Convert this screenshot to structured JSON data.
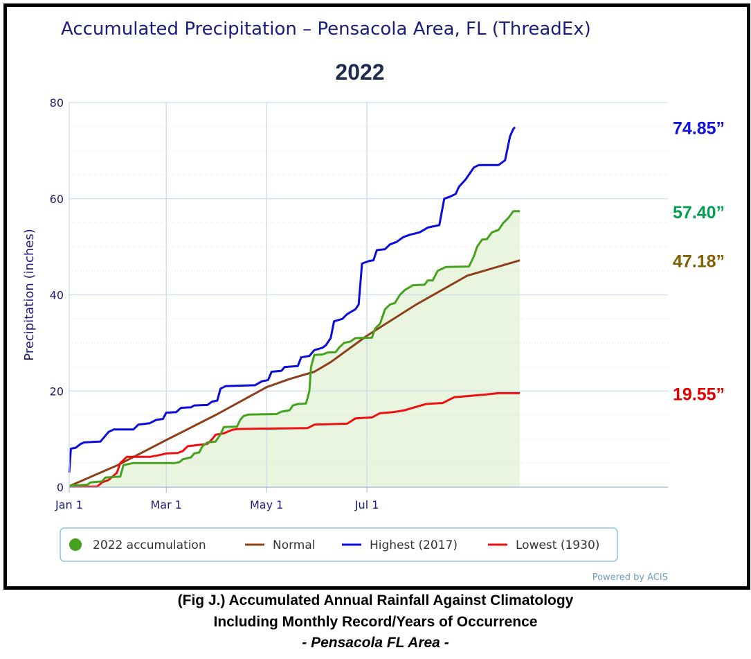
{
  "chart_data": {
    "type": "line",
    "title": "Accumulated Precipitation – Pensacola Area, FL (ThreadEx)",
    "subtitle": "2022",
    "ylabel": "Precipitation (inches)",
    "xlabel": "",
    "ylim": [
      0,
      80
    ],
    "yticks": [
      "0",
      "20",
      "40",
      "60",
      "80"
    ],
    "xlim": [
      1,
      365
    ],
    "xticks": [
      {
        "label": "Jan 1",
        "day": 1
      },
      {
        "label": "Mar 1",
        "day": 60
      },
      {
        "label": "May 1",
        "day": 121
      },
      {
        "label": "Jul 1",
        "day": 182
      }
    ],
    "grid": true,
    "legend_position": "bottom",
    "credit": "Powered by ACIS",
    "series": [
      {
        "name": "2022 accumulation",
        "color": "#46a11f",
        "style": "area",
        "end_label": "57.40”",
        "end_label_color": "#00a050",
        "points": [
          [
            1,
            0.3
          ],
          [
            12,
            0.5
          ],
          [
            14,
            1.0
          ],
          [
            21,
            1.2
          ],
          [
            23,
            2.0
          ],
          [
            32,
            2.2
          ],
          [
            34,
            4.6
          ],
          [
            40,
            5.0
          ],
          [
            45,
            5.0
          ],
          [
            65,
            5.0
          ],
          [
            68,
            5.2
          ],
          [
            70,
            5.8
          ],
          [
            75,
            6.2
          ],
          [
            77,
            7.0
          ],
          [
            80,
            7.2
          ],
          [
            82,
            8.5
          ],
          [
            85,
            9.3
          ],
          [
            90,
            9.5
          ],
          [
            93,
            11.0
          ],
          [
            95,
            12.5
          ],
          [
            103,
            12.6
          ],
          [
            105,
            14.0
          ],
          [
            107,
            14.8
          ],
          [
            110,
            15.1
          ],
          [
            127,
            15.2
          ],
          [
            130,
            15.7
          ],
          [
            135,
            16.0
          ],
          [
            137,
            17.0
          ],
          [
            140,
            17.3
          ],
          [
            145,
            17.4
          ],
          [
            147,
            20.0
          ],
          [
            148,
            25.0
          ],
          [
            150,
            27.5
          ],
          [
            155,
            27.6
          ],
          [
            158,
            28.0
          ],
          [
            163,
            28.1
          ],
          [
            165,
            29.0
          ],
          [
            168,
            30.0
          ],
          [
            172,
            30.3
          ],
          [
            175,
            31.0
          ],
          [
            185,
            31.1
          ],
          [
            187,
            33.0
          ],
          [
            190,
            34.0
          ],
          [
            193,
            37.0
          ],
          [
            196,
            38.0
          ],
          [
            199,
            38.3
          ],
          [
            202,
            40.0
          ],
          [
            205,
            41.0
          ],
          [
            210,
            42.0
          ],
          [
            217,
            42.1
          ],
          [
            219,
            43.0
          ],
          [
            222,
            43.0
          ],
          [
            225,
            45.0
          ],
          [
            230,
            45.8
          ],
          [
            244,
            45.9
          ],
          [
            247,
            48.0
          ],
          [
            249,
            50.0
          ],
          [
            252,
            51.5
          ],
          [
            255,
            51.6
          ],
          [
            258,
            53.0
          ],
          [
            262,
            53.5
          ],
          [
            265,
            55.0
          ],
          [
            268,
            56.0
          ],
          [
            271,
            57.4
          ],
          [
            275,
            57.4
          ]
        ]
      },
      {
        "name": "Normal",
        "color": "#8b3f1a",
        "style": "line",
        "end_label": "47.18”",
        "end_label_color": "#806000",
        "points": [
          [
            1,
            0.2
          ],
          [
            30,
            4.5
          ],
          [
            60,
            9.8
          ],
          [
            90,
            15.0
          ],
          [
            121,
            20.8
          ],
          [
            135,
            22.5
          ],
          [
            150,
            24.0
          ],
          [
            160,
            26.0
          ],
          [
            182,
            31.5
          ],
          [
            212,
            38.0
          ],
          [
            243,
            44.0
          ],
          [
            275,
            47.18
          ]
        ]
      },
      {
        "name": "Highest (2017)",
        "color": "#0a0adc",
        "style": "line",
        "end_label": "74.85”",
        "end_label_color": "#1010e0",
        "points": [
          [
            1,
            3.0
          ],
          [
            2,
            8.0
          ],
          [
            5,
            8.2
          ],
          [
            8,
            9.0
          ],
          [
            10,
            9.3
          ],
          [
            20,
            9.5
          ],
          [
            25,
            11.5
          ],
          [
            28,
            12.0
          ],
          [
            40,
            12.0
          ],
          [
            43,
            13.0
          ],
          [
            50,
            13.3
          ],
          [
            54,
            14.0
          ],
          [
            58,
            14.2
          ],
          [
            60,
            15.5
          ],
          [
            66,
            15.6
          ],
          [
            69,
            16.5
          ],
          [
            75,
            16.6
          ],
          [
            77,
            17.0
          ],
          [
            85,
            17.1
          ],
          [
            88,
            17.8
          ],
          [
            91,
            18.0
          ],
          [
            93,
            20.5
          ],
          [
            96,
            21.0
          ],
          [
            114,
            21.2
          ],
          [
            118,
            22.0
          ],
          [
            122,
            22.3
          ],
          [
            124,
            24.0
          ],
          [
            130,
            24.2
          ],
          [
            132,
            25.0
          ],
          [
            140,
            25.2
          ],
          [
            142,
            27.0
          ],
          [
            147,
            27.3
          ],
          [
            150,
            28.5
          ],
          [
            155,
            29.0
          ],
          [
            157,
            29.5
          ],
          [
            160,
            31.0
          ],
          [
            162,
            34.5
          ],
          [
            167,
            35.0
          ],
          [
            170,
            36.0
          ],
          [
            175,
            37.0
          ],
          [
            177,
            38.0
          ],
          [
            179,
            46.5
          ],
          [
            183,
            47.0
          ],
          [
            186,
            47.2
          ],
          [
            188,
            49.3
          ],
          [
            193,
            49.5
          ],
          [
            196,
            50.5
          ],
          [
            200,
            51.0
          ],
          [
            204,
            52.0
          ],
          [
            208,
            52.5
          ],
          [
            214,
            53.0
          ],
          [
            219,
            54.0
          ],
          [
            226,
            54.5
          ],
          [
            229,
            60.0
          ],
          [
            233,
            60.5
          ],
          [
            236,
            61.0
          ],
          [
            238,
            62.5
          ],
          [
            242,
            64.0
          ],
          [
            247,
            66.5
          ],
          [
            250,
            67.0
          ],
          [
            262,
            67.0
          ],
          [
            266,
            68.0
          ],
          [
            269,
            73.0
          ],
          [
            271,
            74.5
          ],
          [
            272,
            74.85
          ]
        ]
      },
      {
        "name": "Lowest (1930)",
        "color": "#ee1010",
        "style": "line",
        "end_label": "19.55”",
        "end_label_color": "#e00000",
        "points": [
          [
            1,
            0.1
          ],
          [
            18,
            0.1
          ],
          [
            21,
            1.0
          ],
          [
            25,
            1.5
          ],
          [
            30,
            3.0
          ],
          [
            32,
            5.0
          ],
          [
            36,
            6.3
          ],
          [
            50,
            6.3
          ],
          [
            55,
            6.6
          ],
          [
            60,
            7.0
          ],
          [
            67,
            7.1
          ],
          [
            70,
            7.5
          ],
          [
            73,
            8.5
          ],
          [
            80,
            8.8
          ],
          [
            85,
            9.0
          ],
          [
            88,
            10.0
          ],
          [
            90,
            10.9
          ],
          [
            95,
            11.2
          ],
          [
            100,
            11.9
          ],
          [
            103,
            12.1
          ],
          [
            146,
            12.3
          ],
          [
            150,
            13.0
          ],
          [
            170,
            13.2
          ],
          [
            175,
            14.3
          ],
          [
            185,
            14.5
          ],
          [
            190,
            15.4
          ],
          [
            198,
            15.6
          ],
          [
            205,
            16.0
          ],
          [
            212,
            16.7
          ],
          [
            218,
            17.3
          ],
          [
            228,
            17.5
          ],
          [
            235,
            18.7
          ],
          [
            245,
            19.0
          ],
          [
            255,
            19.3
          ],
          [
            262,
            19.55
          ],
          [
            275,
            19.55
          ]
        ]
      }
    ]
  },
  "caption": {
    "line1": "(Fig J.) Accumulated Annual Rainfall Against  Climatology",
    "line2": "Including Monthly Record/Years of Occurrence",
    "line3": "- Pensacola FL Area -"
  },
  "colors": {
    "title": "#1c1c7a",
    "subtitle": "#1e2b4f",
    "axis_text": "#1c1c7a",
    "grid": "#c9dced",
    "area_fill": "#eaf5df",
    "legend_border": "#8cc4ea",
    "credit": "#6f9bc3"
  }
}
